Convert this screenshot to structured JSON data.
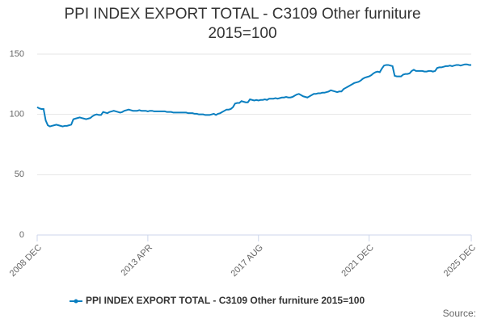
{
  "chart_data": {
    "type": "line",
    "title": "PPI INDEX EXPORT TOTAL - C3109 Other furniture 2015=100",
    "categories": [
      "2008 DEC",
      null,
      null,
      null,
      null,
      null,
      null,
      null,
      null,
      null,
      null,
      null,
      null,
      null,
      null,
      null,
      null,
      null,
      null,
      null,
      null,
      null,
      null,
      null,
      null,
      null,
      null,
      null,
      null,
      null,
      null,
      null,
      null,
      null,
      null,
      null,
      null,
      null,
      null,
      null,
      null,
      null,
      null,
      null,
      null,
      null,
      null,
      null,
      null,
      null,
      null,
      null,
      "2013 APR",
      null,
      null,
      null,
      null,
      null,
      null,
      null,
      null,
      null,
      null,
      null,
      null,
      null,
      null,
      null,
      null,
      null,
      null,
      null,
      null,
      null,
      null,
      null,
      null,
      null,
      null,
      null,
      null,
      null,
      null,
      null,
      null,
      null,
      null,
      null,
      null,
      null,
      null,
      null,
      null,
      null,
      null,
      null,
      null,
      null,
      null,
      null,
      null,
      null,
      null,
      null,
      "2017 AUG",
      null,
      null,
      null,
      null,
      null,
      null,
      null,
      null,
      null,
      null,
      null,
      null,
      null,
      null,
      null,
      null,
      null,
      null,
      null,
      null,
      null,
      null,
      null,
      null,
      null,
      null,
      null,
      null,
      null,
      null,
      null,
      null,
      null,
      null,
      null,
      null,
      null,
      null,
      null,
      null,
      null,
      null,
      null,
      null,
      null,
      null,
      null,
      null,
      null,
      null,
      null,
      "2021 DEC",
      null,
      null,
      null,
      null,
      null,
      null,
      null,
      null,
      null,
      null,
      null,
      null,
      null,
      null,
      null,
      null,
      null,
      null,
      null,
      null,
      null,
      null,
      null,
      null,
      null,
      null,
      null,
      null,
      null,
      null,
      null,
      null,
      null,
      null,
      null,
      null,
      null,
      null,
      null,
      null,
      null,
      null,
      null,
      null,
      null,
      null,
      null,
      "2025 DEC"
    ],
    "series": [
      {
        "name": "PPI INDEX EXPORT TOTAL - C3109 Other furniture 2015=100",
        "color": "#0a7fc0",
        "values": [
          106,
          105,
          104.5,
          104.5,
          95,
          91,
          90,
          90.5,
          91,
          91.5,
          91,
          90.5,
          90,
          90.5,
          90.5,
          91,
          91.5,
          96,
          96.5,
          97,
          97.5,
          97,
          96.5,
          96,
          96.5,
          97,
          98.5,
          99.5,
          100,
          99.5,
          99.5,
          102,
          101.5,
          101,
          102,
          102.5,
          103,
          102.5,
          102,
          101.5,
          102,
          103,
          103.5,
          104,
          103.5,
          103,
          103,
          103,
          103.5,
          103,
          103,
          103,
          102.5,
          103,
          103,
          102.5,
          102.5,
          102.5,
          102.5,
          102.5,
          102.5,
          102,
          102,
          102,
          101.5,
          101.5,
          101.5,
          101.5,
          101.5,
          101.5,
          101.5,
          101,
          101,
          101,
          100.5,
          100.5,
          100,
          100,
          100,
          99.5,
          99.5,
          99.5,
          100,
          100.5,
          99.5,
          100.5,
          101,
          102,
          103,
          104,
          104,
          104.5,
          106,
          109,
          109.5,
          109.5,
          111,
          110.5,
          110,
          110,
          112.5,
          112,
          111.5,
          112,
          111.5,
          112,
          112,
          112.5,
          112,
          113,
          113,
          113,
          113.5,
          113,
          113.5,
          114,
          114,
          114.5,
          114,
          114,
          114.5,
          115.5,
          116.5,
          117,
          116,
          115,
          114.5,
          114,
          115,
          116,
          117,
          117,
          117.5,
          117.5,
          118,
          118,
          118.5,
          119,
          120,
          119.5,
          119,
          118.5,
          119,
          119,
          121,
          122,
          123,
          124,
          125,
          126,
          126.5,
          127,
          128,
          129.5,
          130.5,
          131,
          131.5,
          132.5,
          134,
          135,
          135.5,
          135,
          138,
          140.5,
          141,
          141,
          140.5,
          140,
          132,
          131.5,
          131.5,
          131.5,
          133,
          133.5,
          133.5,
          134,
          136,
          137,
          136,
          136,
          136,
          136,
          135.5,
          135.5,
          136,
          136,
          135.5,
          136,
          138.5,
          139,
          139,
          139.5,
          140,
          140,
          140.5,
          140,
          140.5,
          141,
          141,
          140.5,
          141,
          141.5,
          141.5,
          141,
          141
        ]
      }
    ],
    "ylim": [
      0,
      150
    ],
    "yticks": [
      0,
      50,
      100,
      150
    ],
    "grid": true,
    "legend": "bottom",
    "source": "Source:"
  }
}
